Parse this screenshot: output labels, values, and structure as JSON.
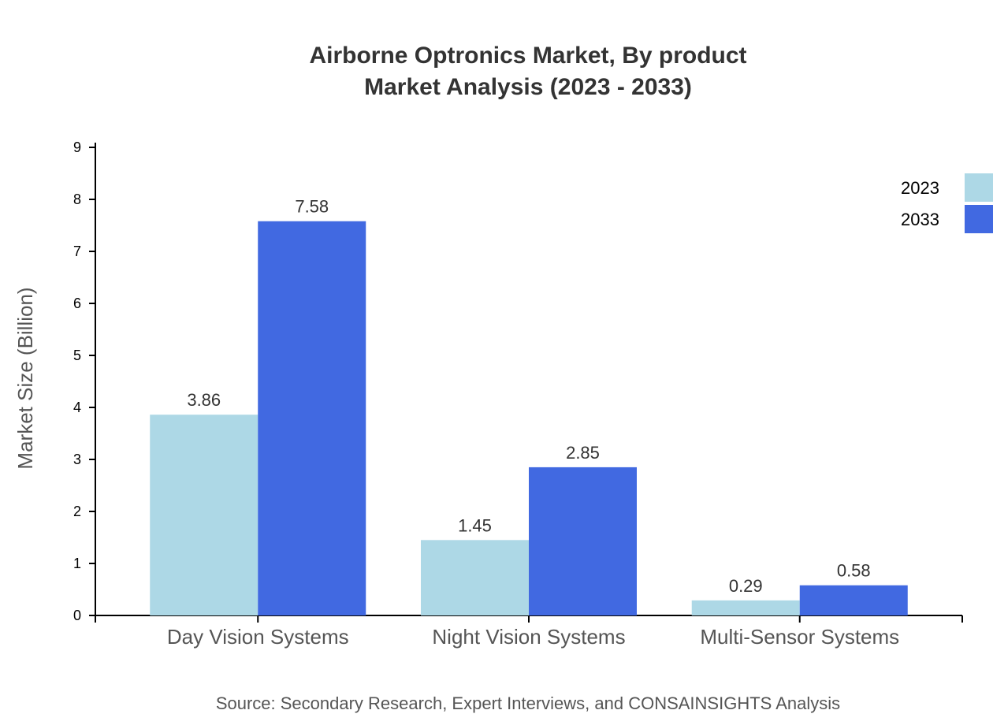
{
  "chart_data": {
    "type": "bar",
    "title": "Airborne Optronics Market, By product",
    "subtitle": "Market Analysis (2023 - 2033)",
    "xlabel": "",
    "ylabel": "Market Size (Billion)",
    "ylim": [
      0,
      9
    ],
    "yticks": [
      0,
      1,
      2,
      3,
      4,
      5,
      6,
      7,
      8,
      9
    ],
    "categories": [
      "Day Vision Systems",
      "Night Vision Systems",
      "Multi-Sensor Systems"
    ],
    "series": [
      {
        "name": "2023",
        "values": [
          3.86,
          1.45,
          0.29
        ],
        "color": "#add8e6"
      },
      {
        "name": "2033",
        "values": [
          7.58,
          2.85,
          0.58
        ],
        "color": "#4169e1"
      }
    ],
    "legend_placement": "top-right",
    "grid": false,
    "source": "Source: Secondary Research, Expert Interviews, and CONSAINSIGHTS Analysis"
  }
}
